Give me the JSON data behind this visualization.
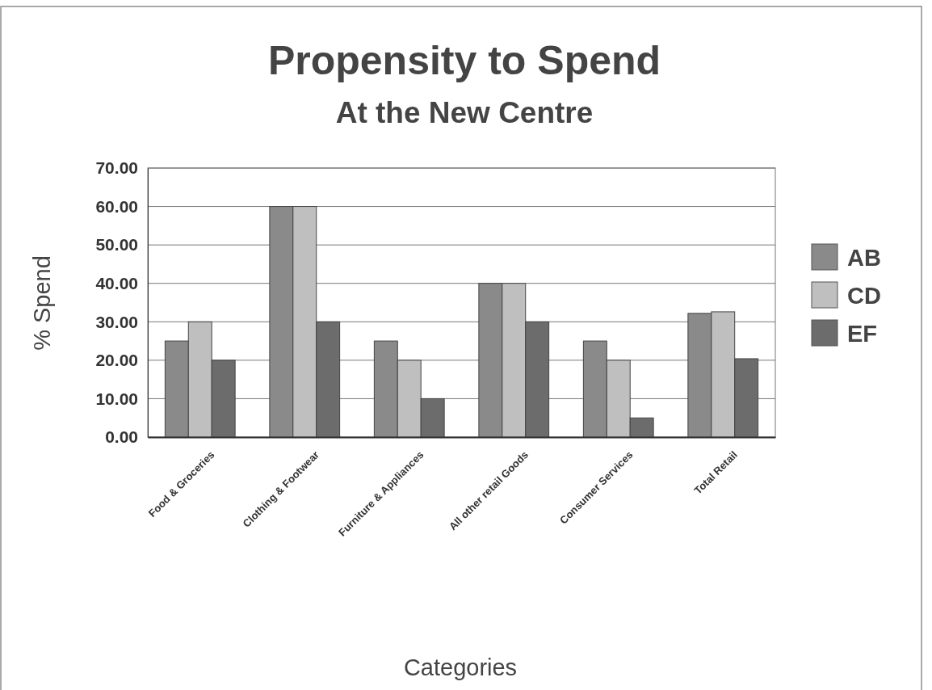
{
  "chart_data": {
    "type": "bar",
    "title": "Propensity to Spend",
    "subtitle": "At the New Centre",
    "xlabel": "Categories",
    "ylabel": "% Spend",
    "categories": [
      "Food & Groceries",
      "Clothing & Footwear",
      "Furniture & Appliances",
      "All other retail Goods",
      "Consumer Services",
      "Total Retail"
    ],
    "series": [
      {
        "name": "AB",
        "color": "#8a8a8a",
        "values": [
          25,
          60,
          25,
          40,
          25,
          32.2
        ]
      },
      {
        "name": "CD",
        "color": "#bfbfbf",
        "values": [
          30,
          60,
          20,
          40,
          20,
          32.6
        ]
      },
      {
        "name": "EF",
        "color": "#6c6c6c",
        "values": [
          20,
          30,
          10,
          30,
          5,
          20.4
        ]
      }
    ],
    "ylim": [
      0,
      70
    ],
    "yticks": [
      {
        "value": 0,
        "label": "0.00"
      },
      {
        "value": 10,
        "label": "10.00"
      },
      {
        "value": 20,
        "label": "20.00"
      },
      {
        "value": 30,
        "label": "30.00"
      },
      {
        "value": 40,
        "label": "40.00"
      },
      {
        "value": 50,
        "label": "50.00"
      },
      {
        "value": 60,
        "label": "60.00"
      },
      {
        "value": 70,
        "label": "70.00"
      }
    ],
    "grid": "y",
    "legend": "right"
  }
}
